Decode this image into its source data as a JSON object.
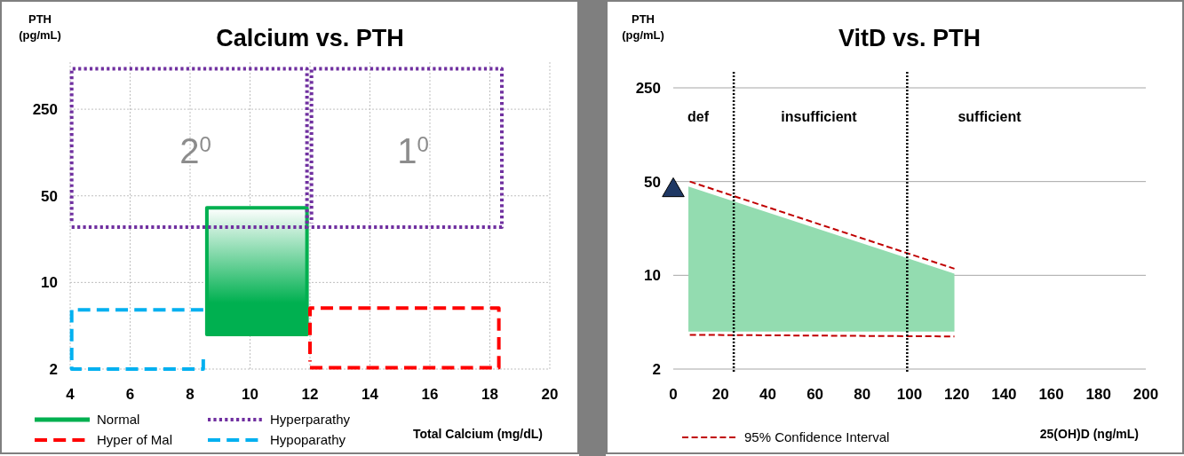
{
  "chart_data": [
    {
      "type": "line",
      "title": "Calcium vs. PTH",
      "xlabel": "Total Calcium (mg/dL)",
      "ylabel": "PTH (pg/mL)",
      "log": "y",
      "xlim": [
        4,
        20
      ],
      "xticks": [
        4,
        6,
        8,
        10,
        12,
        14,
        16,
        18,
        20
      ],
      "ylim": [
        2,
        600
      ],
      "yticks": [
        2,
        10,
        50,
        250
      ],
      "grid": true,
      "legend": "bottom left",
      "series": [
        {
          "name": "Normal",
          "type": "area",
          "color": "#00b050",
          "x": [
            8.56,
            11.9,
            11.9,
            8.56
          ],
          "values": [
            40,
            40,
            3.8,
            3.8
          ]
        },
        {
          "name": "Hyper of Mal",
          "color": "#ff0000",
          "line_style": "dashed",
          "x": [
            12,
            18.3,
            18.3,
            12,
            12
          ],
          "values": [
            2.05,
            2.05,
            6.2,
            6.2,
            2.3
          ]
        },
        {
          "name": "Hyperparathy",
          "color": "#7030a0",
          "line_style": "dotted",
          "x": [
            4.05,
            11.9,
            11.9,
            4.05,
            4.05,
            null,
            12.05,
            18.4,
            18.4,
            12.05,
            12.05
          ],
          "values": [
            28,
            28,
            530,
            530,
            30,
            null,
            28,
            28,
            530,
            530,
            30
          ]
        },
        {
          "name": "Hypoparathy",
          "color": "#00b0f0",
          "line_style": "dashed",
          "x": [
            8.44,
            4.05,
            4.05,
            8.44,
            8.44
          ],
          "values": [
            6,
            6,
            2,
            2,
            2.4
          ]
        }
      ],
      "annotations": [
        "2$^{0}$",
        "1$^{0}$"
      ]
    },
    {
      "type": "line",
      "title": "VitD vs. PTH",
      "xlabel": "25(OH)D (ng/mL)",
      "ylabel": "PTH (pg/mL)",
      "log": "y",
      "xlim": [
        0,
        200
      ],
      "xticks": [
        0,
        20,
        40,
        60,
        80,
        100,
        120,
        140,
        160,
        180,
        200
      ],
      "ylim": [
        2,
        250
      ],
      "yticks": [
        2,
        10,
        50,
        250
      ],
      "grid": "y",
      "legend": "bottom",
      "series": [
        {
          "type": "area",
          "color": "#93dcb0",
          "x": [
            6.4,
            119,
            119,
            6.4
          ],
          "values": [
            46,
            10.3,
            3.8,
            3.8
          ]
        },
        {
          "name": "95% Confidence Interval",
          "color": "#c00000",
          "line_style": "dashed",
          "x": [
            7,
            119
          ],
          "values": [
            50,
            11.2
          ]
        },
        {
          "color": "#c00000",
          "line_style": "dashed",
          "x": [
            7,
            119
          ],
          "values": [
            3.6,
            3.5
          ]
        },
        {
          "type": "scatter",
          "marker": "triangle",
          "color": "#1f3864",
          "x": [
            0
          ],
          "values": [
            43
          ]
        }
      ],
      "ref_lines": [
        {
          "axis": "x",
          "value": 25.6,
          "line_style": "dotted"
        },
        {
          "axis": "x",
          "value": 99,
          "line_style": "dotted"
        }
      ],
      "annotations": [
        "def",
        "insufficient",
        "sufficient"
      ]
    }
  ]
}
